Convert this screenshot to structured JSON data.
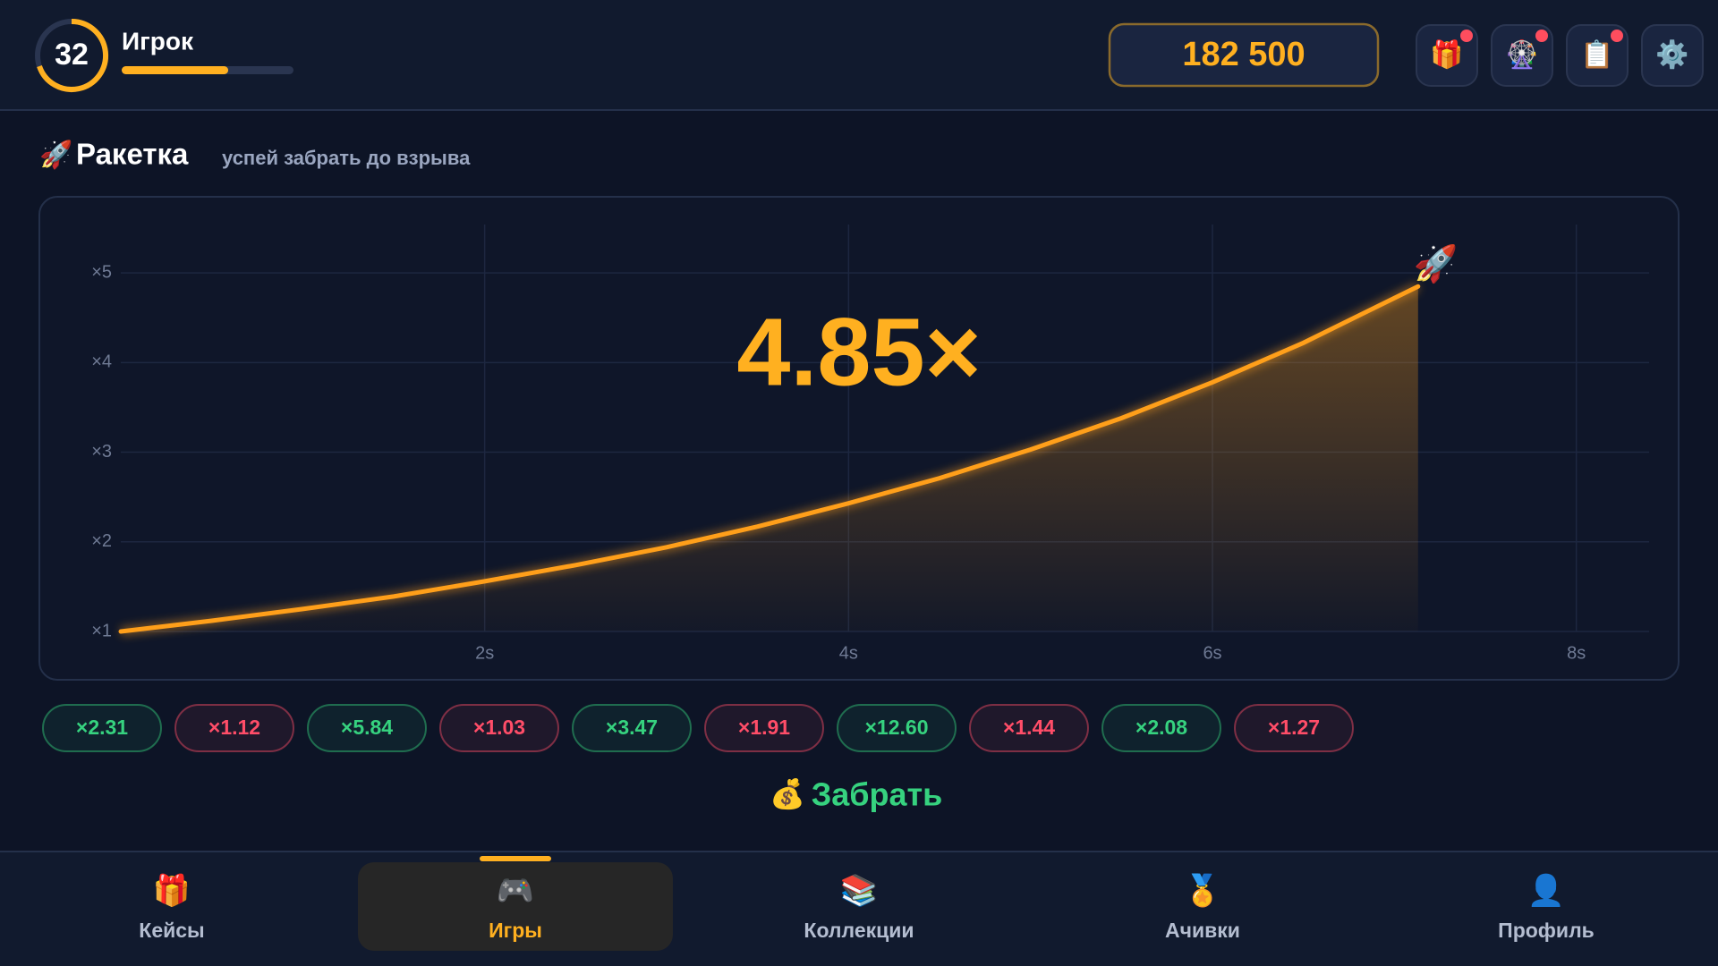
{
  "header": {
    "level": "32",
    "player": "Игрок",
    "xp": {
      "value": 0.62
    },
    "balance": "182 500",
    "buttons": [
      {
        "icon": "🎁",
        "badge": true
      },
      {
        "icon": "🎡",
        "badge": true
      },
      {
        "icon": "📋",
        "badge": true
      },
      {
        "icon": "⚙️",
        "badge": false
      }
    ]
  },
  "game": {
    "icon": "🚀",
    "title": "Ракетка",
    "subtitle": "успей забрать до взрыва"
  },
  "chart": {
    "type": "line",
    "color": "#ff9f1a",
    "grid": true,
    "marker": "🚀",
    "multiplier": "4.85×",
    "x": [
      0,
      0.5,
      1,
      1.5,
      2,
      2.5,
      3,
      3.5,
      4,
      4.5,
      5,
      5.5,
      6,
      6.5,
      7,
      7.13
    ],
    "values": [
      1,
      1.12,
      1.25,
      1.39,
      1.56,
      1.74,
      1.94,
      2.17,
      2.43,
      2.71,
      3.03,
      3.38,
      3.78,
      4.22,
      4.72,
      4.85
    ],
    "xlim": [
      0,
      8.4
    ],
    "ylim": [
      1,
      5.54
    ],
    "xticks": [
      {
        "value": 2,
        "label": "2s"
      },
      {
        "value": 4,
        "label": "4s"
      },
      {
        "value": 6,
        "label": "6s"
      },
      {
        "value": 8,
        "label": "8s"
      }
    ],
    "yticks": [
      {
        "value": 1,
        "label": "×1"
      },
      {
        "value": 2,
        "label": "×2"
      },
      {
        "value": 3,
        "label": "×3"
      },
      {
        "value": 4,
        "label": "×4"
      },
      {
        "value": 5,
        "label": "×5"
      }
    ]
  },
  "history": [
    {
      "label": "×2.31",
      "color": "#36d27f"
    },
    {
      "label": "×1.12",
      "color": "#ff4d68"
    },
    {
      "label": "×5.84",
      "color": "#36d27f"
    },
    {
      "label": "×1.03",
      "color": "#ff4d68"
    },
    {
      "label": "×3.47",
      "color": "#36d27f"
    },
    {
      "label": "×1.91",
      "color": "#ff4d68"
    },
    {
      "label": "×12.60",
      "color": "#36d27f"
    },
    {
      "label": "×1.44",
      "color": "#ff4d68"
    },
    {
      "label": "×2.08",
      "color": "#36d27f"
    },
    {
      "label": "×1.27",
      "color": "#ff4d68"
    }
  ],
  "cashout": {
    "icon": "💰",
    "label": "Забрать"
  },
  "nav": {
    "active": 1,
    "items": [
      {
        "icon": "🎁",
        "label": "Кейсы"
      },
      {
        "icon": "🎮",
        "label": "Игры"
      },
      {
        "icon": "📚",
        "label": "Коллекции"
      },
      {
        "icon": "🏅",
        "label": "Ачивки"
      },
      {
        "icon": "👤",
        "label": "Профиль"
      }
    ]
  }
}
